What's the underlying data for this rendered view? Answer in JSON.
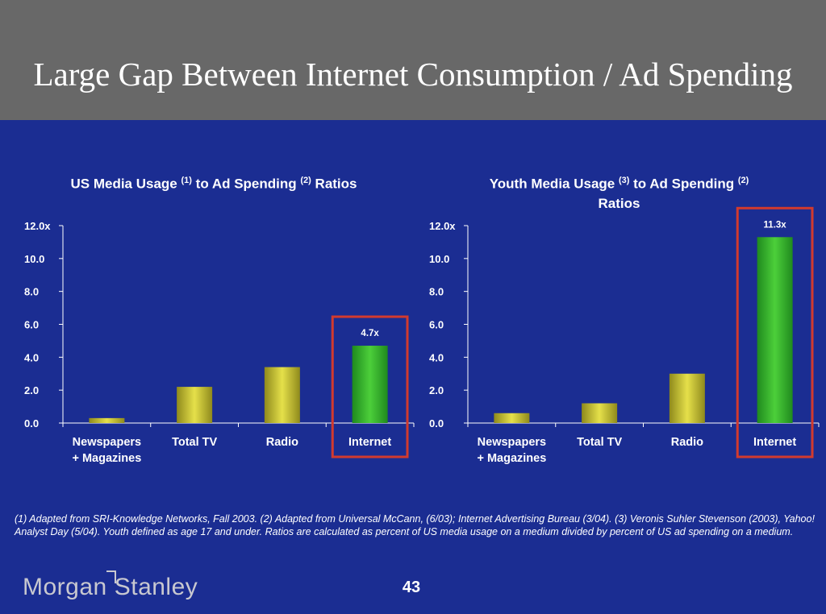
{
  "slide": {
    "title": "Large Gap Between Internet Consumption / Ad Spending",
    "footnote": "(1) Adapted from SRI-Knowledge Networks, Fall 2003.  (2) Adapted from Universal McCann, (6/03); Internet Advertising Bureau (3/04). (3) Veronis Suhler Stevenson (2003), Yahoo! Analyst Day (5/04).  Youth defined as age 17 and under.  Ratios are calculated as percent of US media usage on a medium divided by percent of US ad spending on a medium.",
    "page_number": "43",
    "logo": {
      "part1": "Morgan",
      "part2": "Stanley"
    }
  },
  "chart_titles": {
    "left": {
      "a": "US Media Usage ",
      "sup1": "(1)",
      "b": " to Ad Spending ",
      "sup2": "(2)",
      "c": " Ratios"
    },
    "right": {
      "a": "Youth Media Usage ",
      "sup1": "(3)",
      "b": " to Ad Spending ",
      "sup2": "(2)",
      "c": "Ratios"
    }
  },
  "colors": {
    "background": "#1b2d92",
    "title_band": "#686868",
    "bar_yellow": "#e5e04a",
    "bar_green": "#4ccf3a",
    "highlight_box": "#d23a2e"
  },
  "chart_data": [
    {
      "type": "bar",
      "title": "US Media Usage (1) to Ad Spending (2) Ratios",
      "categories": [
        "Newspapers + Magazines",
        "Total TV",
        "Radio",
        "Internet"
      ],
      "category_lines": [
        [
          "Newspapers",
          "+ Magazines"
        ],
        [
          "Total TV"
        ],
        [
          "Radio"
        ],
        [
          "Internet"
        ]
      ],
      "values": [
        0.3,
        2.2,
        3.4,
        4.7
      ],
      "data_labels": [
        "",
        "",
        "",
        "4.7x"
      ],
      "highlight_index": 3,
      "ylim": [
        0,
        12
      ],
      "yticks": [
        0,
        2,
        4,
        6,
        8,
        10,
        12
      ],
      "ytick_labels": [
        "0.0",
        "2.0",
        "4.0",
        "6.0",
        "8.0",
        "10.0",
        "12.0x"
      ],
      "grid": false
    },
    {
      "type": "bar",
      "title": "Youth Media Usage (3) to Ad Spending (2) Ratios",
      "categories": [
        "Newspapers + Magazines",
        "Total TV",
        "Radio",
        "Internet"
      ],
      "category_lines": [
        [
          "Newspapers",
          "+ Magazines"
        ],
        [
          "Total TV"
        ],
        [
          "Radio"
        ],
        [
          "Internet"
        ]
      ],
      "values": [
        0.6,
        1.2,
        3.0,
        11.3
      ],
      "data_labels": [
        "",
        "",
        "",
        "11.3x"
      ],
      "highlight_index": 3,
      "ylim": [
        0,
        12
      ],
      "yticks": [
        0,
        2,
        4,
        6,
        8,
        10,
        12
      ],
      "ytick_labels": [
        "0.0",
        "2.0",
        "4.0",
        "6.0",
        "8.0",
        "10.0",
        "12.0x"
      ],
      "grid": false
    }
  ]
}
